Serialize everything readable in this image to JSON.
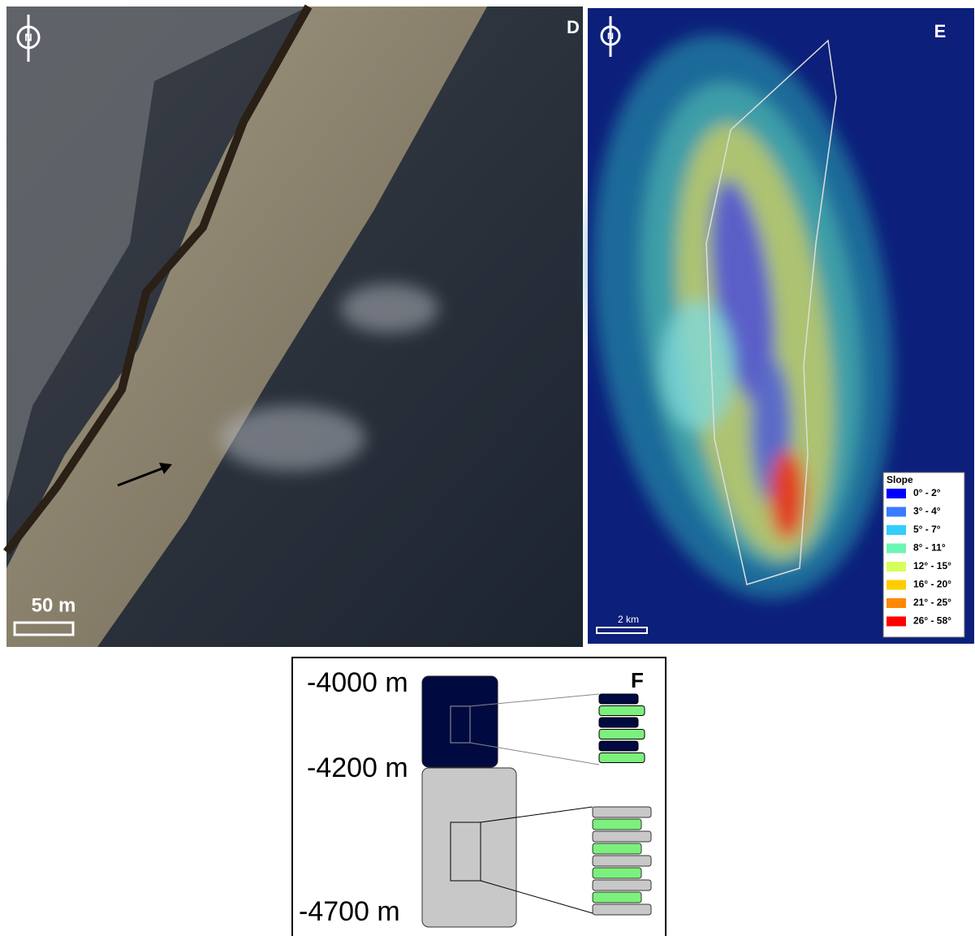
{
  "panel_d": {
    "letter": "D",
    "north": "N",
    "scale_bar": "50 m"
  },
  "panel_e": {
    "letter": "E",
    "north": "N",
    "scale_bar": "2 km",
    "legend": {
      "title": "Slope",
      "items": [
        {
          "label": "0° - 2°",
          "color": "#0000ff"
        },
        {
          "label": "3° - 4°",
          "color": "#3a7bff"
        },
        {
          "label": "5° - 7°",
          "color": "#33ccff"
        },
        {
          "label": "8° - 11°",
          "color": "#6cf5b4"
        },
        {
          "label": "12° - 15°",
          "color": "#d6ff5a"
        },
        {
          "label": "16° - 20°",
          "color": "#ffcc00"
        },
        {
          "label": "21° - 25°",
          "color": "#ff8800"
        },
        {
          "label": "26° - 58°",
          "color": "#ff0000"
        }
      ]
    }
  },
  "panel_f": {
    "letter": "F",
    "depths": [
      "-4000 m",
      "-4200 m",
      "-4700 m"
    ]
  }
}
